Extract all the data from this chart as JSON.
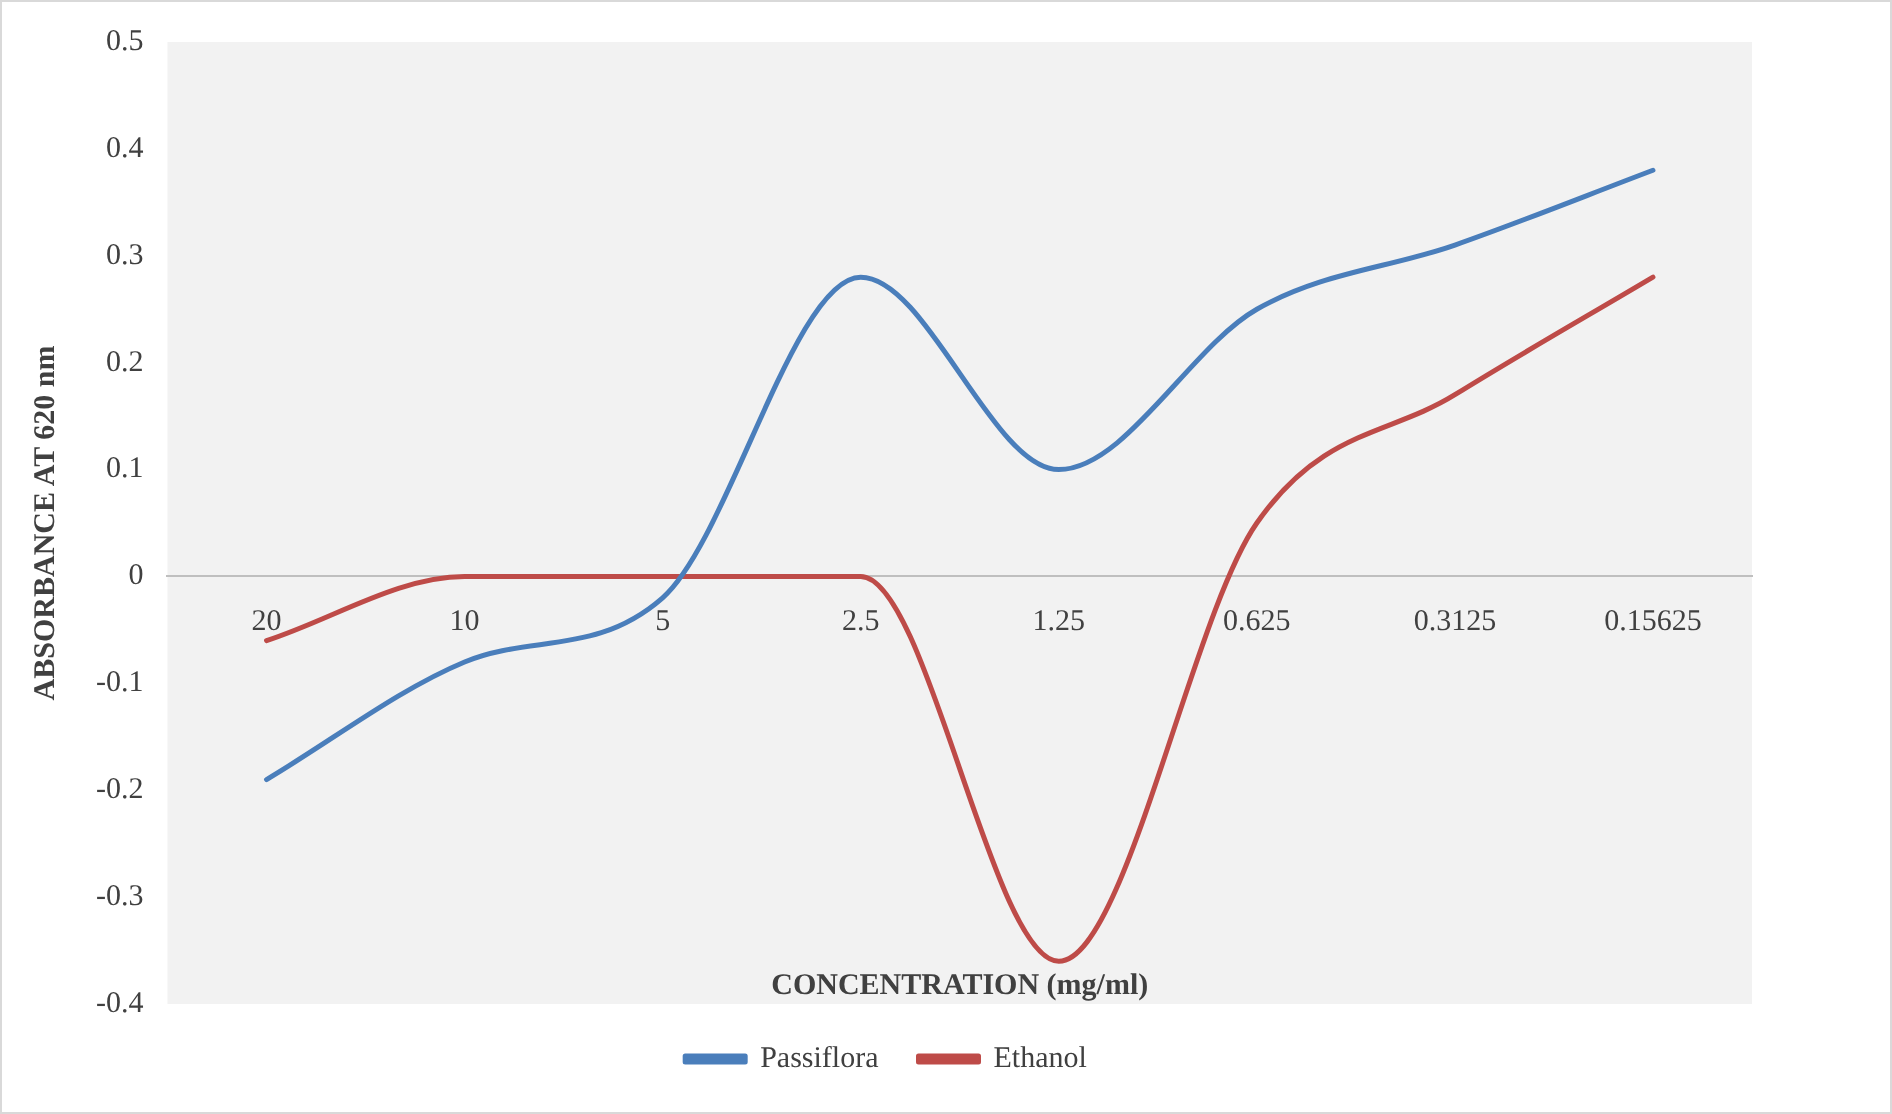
{
  "chart_data": {
    "type": "line",
    "xlabel": "CONCENTRATION (mg/ml)",
    "ylabel": "ABSORBANCE AT 620 nm",
    "categories": [
      "20",
      "10",
      "5",
      "2.5",
      "1.25",
      "0.625",
      "0.3125",
      "0.15625"
    ],
    "series": [
      {
        "name": "Passiflora",
        "color": "#4a7ebb",
        "values": [
          -0.19,
          -0.08,
          -0.02,
          0.28,
          0.1,
          0.25,
          0.31,
          0.38
        ]
      },
      {
        "name": "Ethanol",
        "color": "#be4b48",
        "values": [
          -0.06,
          0,
          0,
          0,
          -0.36,
          0.05,
          0.17,
          0.28
        ]
      }
    ],
    "ylim": [
      -0.4,
      0.5
    ],
    "yticks": [
      -0.4,
      -0.3,
      -0.2,
      -0.1,
      0,
      0.1,
      0.2,
      0.3,
      0.4,
      0.5
    ],
    "grid": false,
    "legend": "bottom",
    "marker": "none",
    "line_style": "solid"
  }
}
